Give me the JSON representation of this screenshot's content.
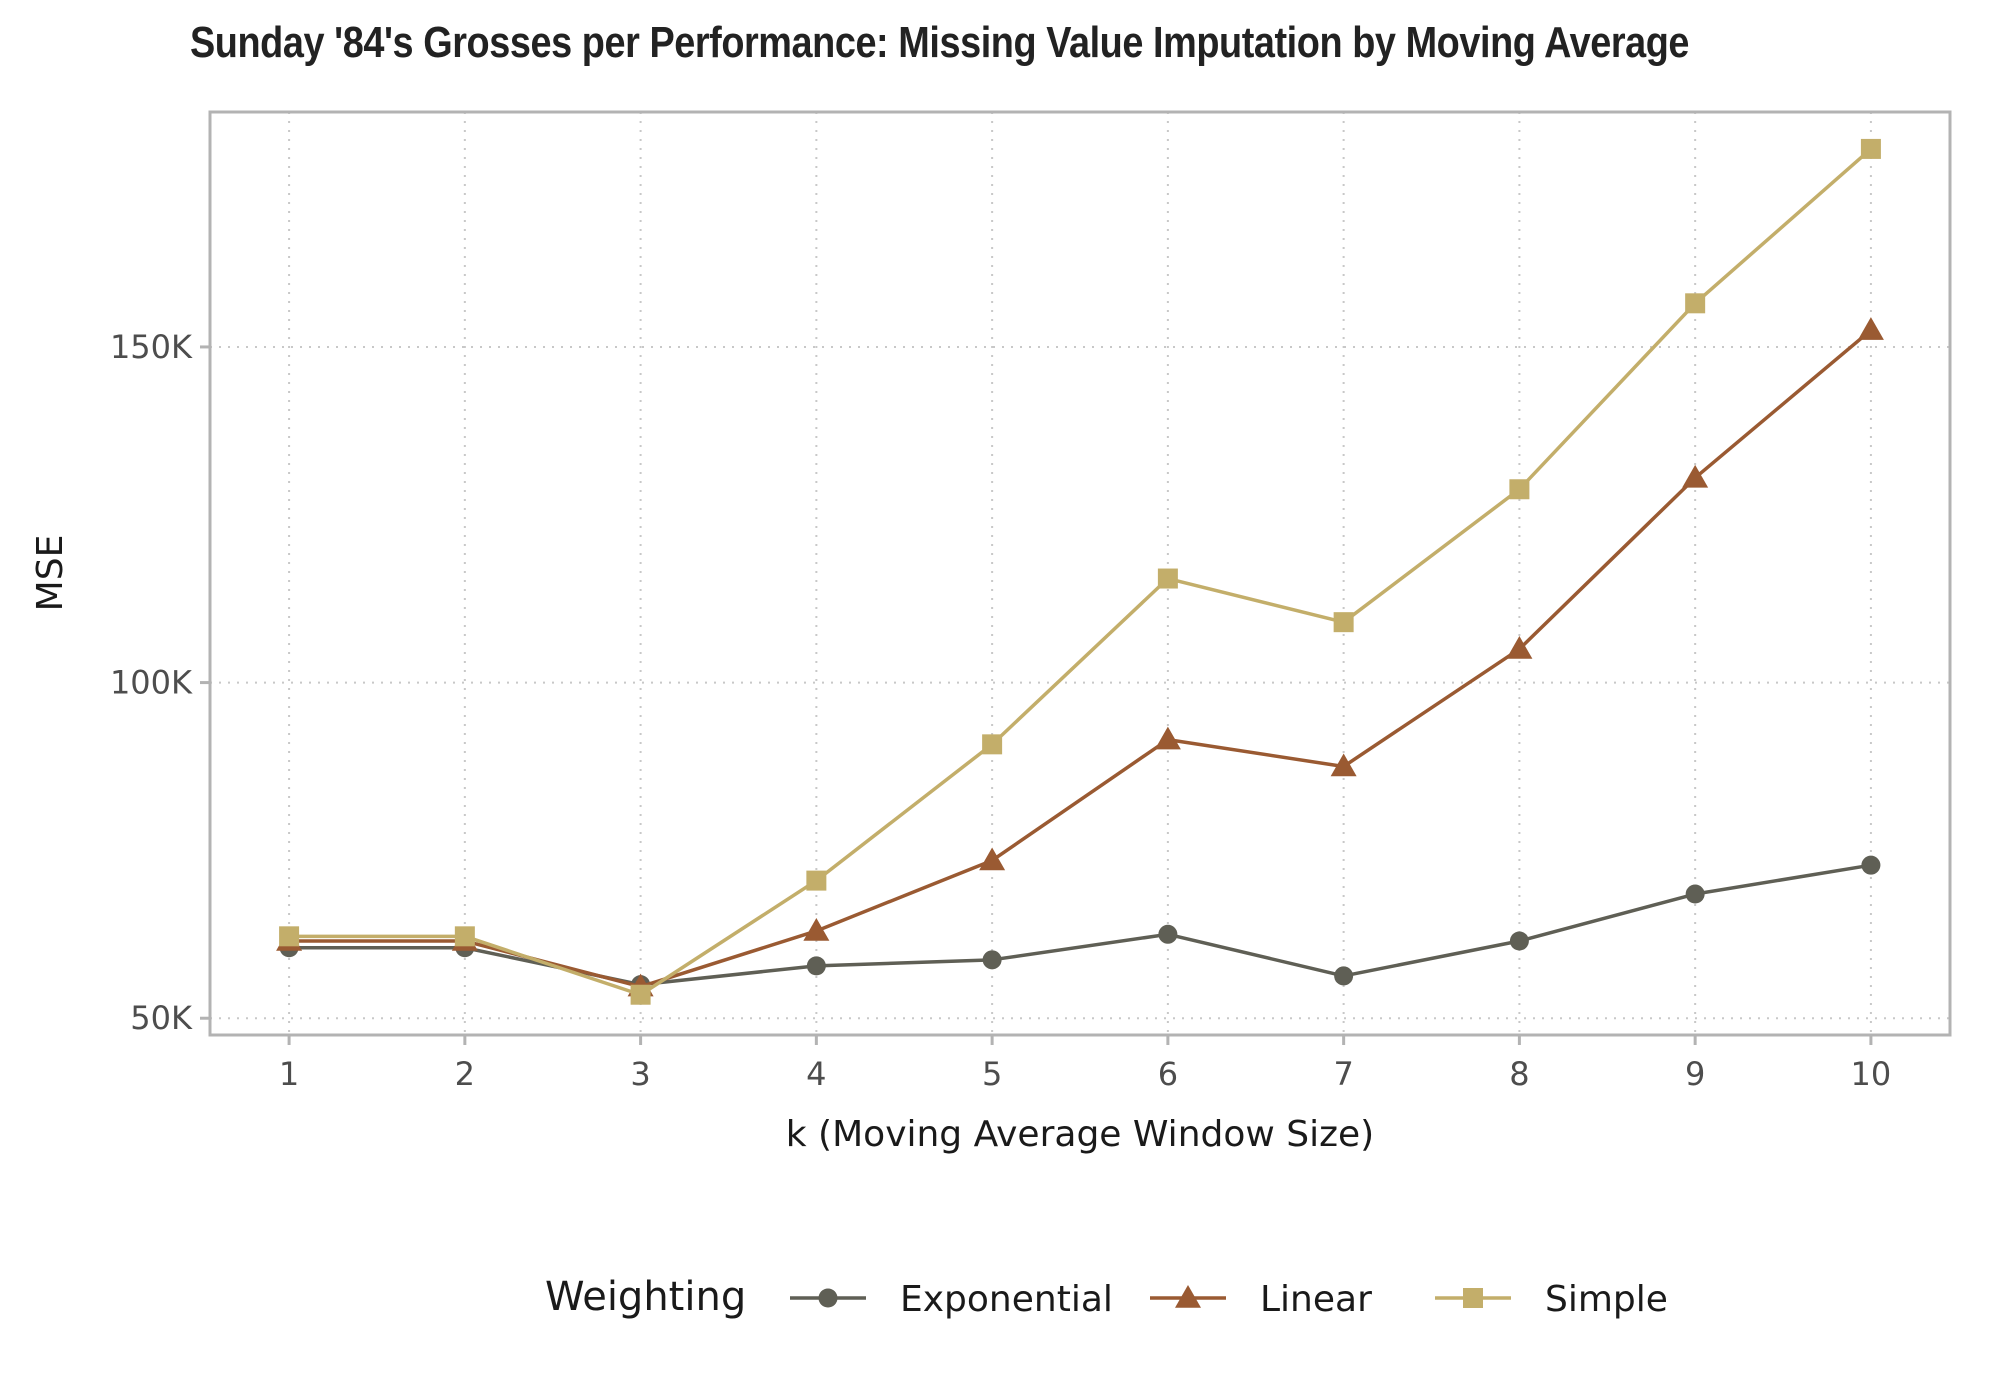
{
  "chart_data": {
    "type": "line",
    "title": "Sunday '84's Grosses per Performance: Missing Value Imputation by Moving Average",
    "xlabel": "k (Moving Average Window Size)",
    "ylabel": "MSE",
    "x": [
      1,
      2,
      3,
      4,
      5,
      6,
      7,
      8,
      9,
      10
    ],
    "x_tick_labels": [
      "1",
      "2",
      "3",
      "4",
      "5",
      "6",
      "7",
      "8",
      "9",
      "10"
    ],
    "y_ticks": [
      50000,
      100000,
      150000
    ],
    "y_tick_labels": [
      "50K",
      "100K",
      "150K"
    ],
    "xlim": [
      0.55,
      10.45
    ],
    "ylim": [
      47500,
      185000
    ],
    "grid": true,
    "legend": {
      "title": "Weighting",
      "position": "bottom"
    },
    "series": [
      {
        "name": "Exponential",
        "color": "#5f5f55",
        "marker": "circle",
        "values": [
          60500,
          60500,
          55000,
          57800,
          58700,
          62500,
          56300,
          61500,
          68500,
          72800
        ]
      },
      {
        "name": "Linear",
        "color": "#9a5a32",
        "marker": "triangle",
        "values": [
          61500,
          61500,
          54700,
          63000,
          73500,
          91500,
          87500,
          105000,
          130500,
          152500
        ]
      },
      {
        "name": "Simple",
        "color": "#c3ae6a",
        "marker": "square",
        "values": [
          62200,
          62200,
          53500,
          70500,
          90800,
          115500,
          109000,
          128800,
          156500,
          179500
        ]
      }
    ]
  }
}
